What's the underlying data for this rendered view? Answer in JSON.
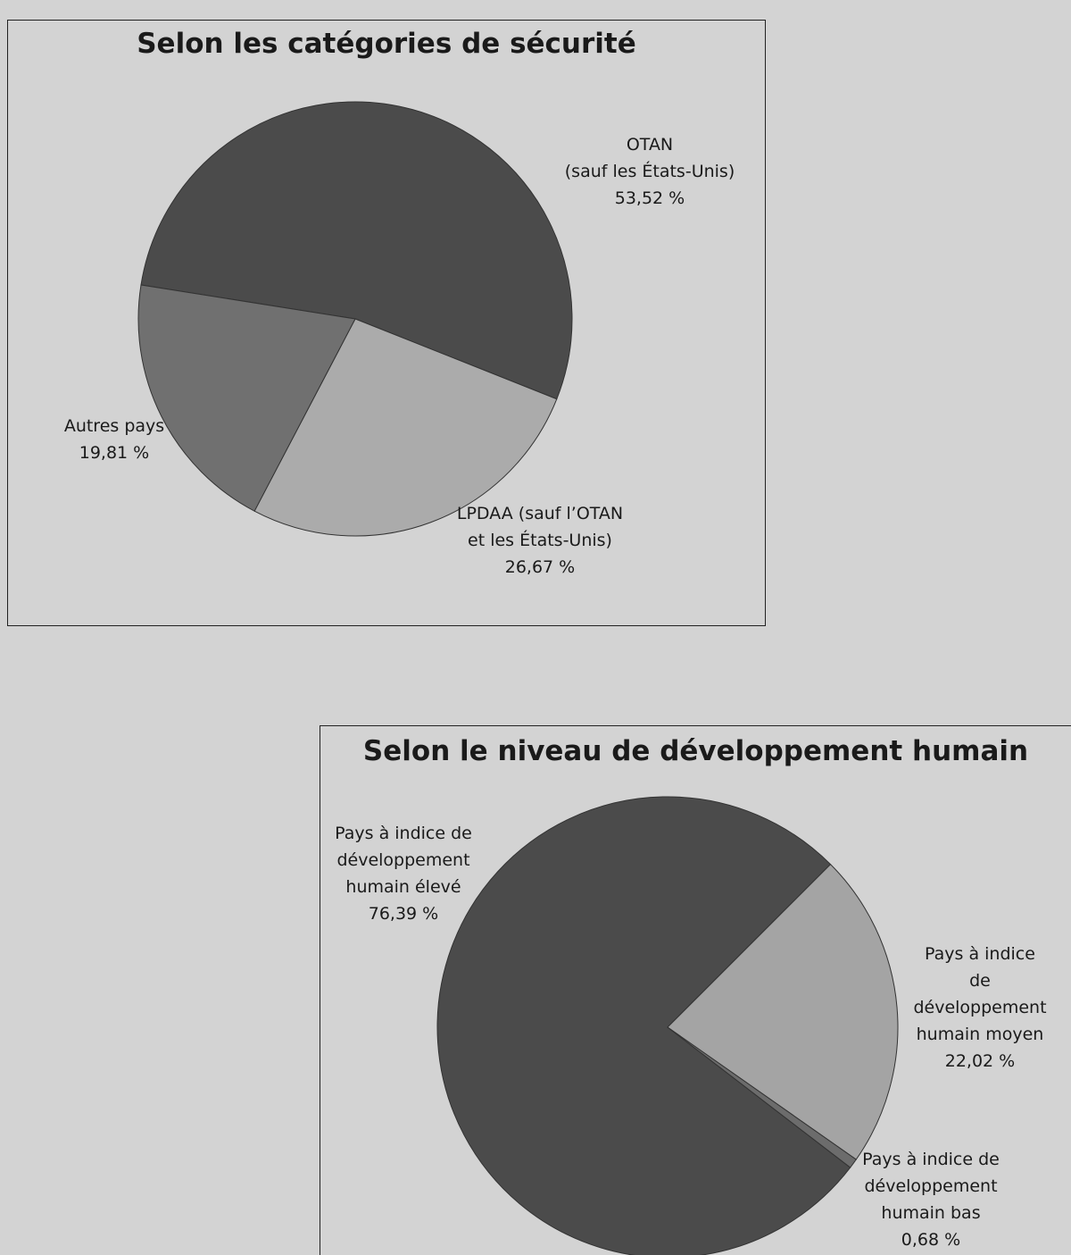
{
  "chart_data": [
    {
      "type": "pie",
      "title": "Selon les catégories de sécurité",
      "categories": [
        "OTAN\n(sauf les États-Unis)",
        "LPDAA (sauf l’OTAN\net les États-Unis)",
        "Autres pays"
      ],
      "values": [
        53.52,
        26.67,
        19.81
      ],
      "value_labels": [
        "53,52 %",
        "26,67 %",
        "19,81 %"
      ],
      "colors": [
        "#4b4b4b",
        "#ababab",
        "#707070"
      ]
    },
    {
      "type": "pie",
      "title": "Selon le niveau de développement humain",
      "categories": [
        "Pays à indice de\ndéveloppement\nhumain élevé",
        "Pays à indice de\ndéveloppement\nhumain moyen",
        "Pays à indice de\ndéveloppement\nhumain bas"
      ],
      "values": [
        76.39,
        22.02,
        0.68
      ],
      "value_labels": [
        "76,39 %",
        "22,02 %",
        "0,68 %"
      ],
      "colors": [
        "#4b4b4b",
        "#a4a4a4",
        "#6c6c6c"
      ]
    }
  ]
}
